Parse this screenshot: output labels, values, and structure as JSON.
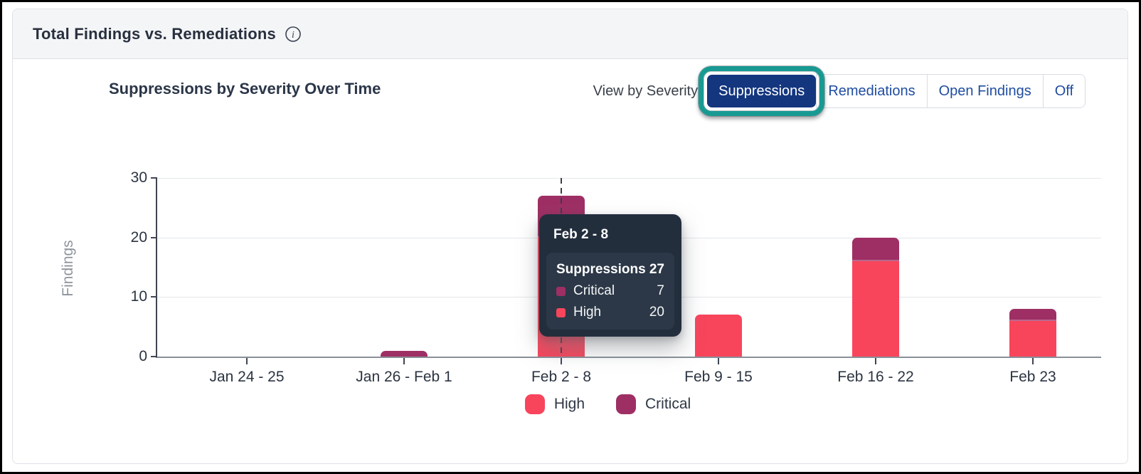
{
  "panel": {
    "title": "Total Findings vs. Remediations"
  },
  "icons": {
    "info_glyph": "i"
  },
  "controls": {
    "view_by_label": "View by Severity",
    "buttons": [
      {
        "label": "Suppressions",
        "selected": true
      },
      {
        "label": "Remediations",
        "selected": false
      },
      {
        "label": "Open Findings",
        "selected": false
      },
      {
        "label": "Off",
        "selected": false
      }
    ]
  },
  "chart_data": {
    "type": "bar",
    "stacked": true,
    "title": "Suppressions by Severity Over Time",
    "xlabel": "",
    "ylabel": "Findings",
    "categories": [
      "Jan 24 - 25",
      "Jan 26 - Feb 1",
      "Feb 2 - 8",
      "Feb 9 - 15",
      "Feb 16 - 22",
      "Feb 23"
    ],
    "series": [
      {
        "name": "High",
        "color": "#F8455C",
        "values": [
          0,
          0,
          20,
          7,
          16,
          6
        ]
      },
      {
        "name": "Critical",
        "color": "#9E2F64",
        "values": [
          0,
          1,
          7,
          0,
          4,
          2
        ]
      }
    ],
    "ylim": [
      0,
      30
    ],
    "yticks": [
      0,
      10,
      20,
      30
    ],
    "grid": "horizontal",
    "legend_position": "bottom",
    "highlighted_category": "Feb 2 - 8"
  },
  "tooltip": {
    "title": "Feb 2 - 8",
    "total_label": "Suppressions",
    "total_value": "27",
    "rows": [
      {
        "label": "Critical",
        "value": "7",
        "color": "#9E2F64"
      },
      {
        "label": "High",
        "value": "20",
        "color": "#F8455C"
      }
    ]
  },
  "legend": [
    {
      "label": "High",
      "color": "#F8455C"
    },
    {
      "label": "Critical",
      "color": "#9E2F64"
    }
  ],
  "colors": {
    "high": "#F8455C",
    "critical": "#9E2F64",
    "selected_button_bg": "#14367E",
    "button_text": "#1F4DA1",
    "annotation_ring": "#189A93",
    "tooltip_bg": "#232E3D",
    "tooltip_inner_bg": "#2C3847"
  }
}
